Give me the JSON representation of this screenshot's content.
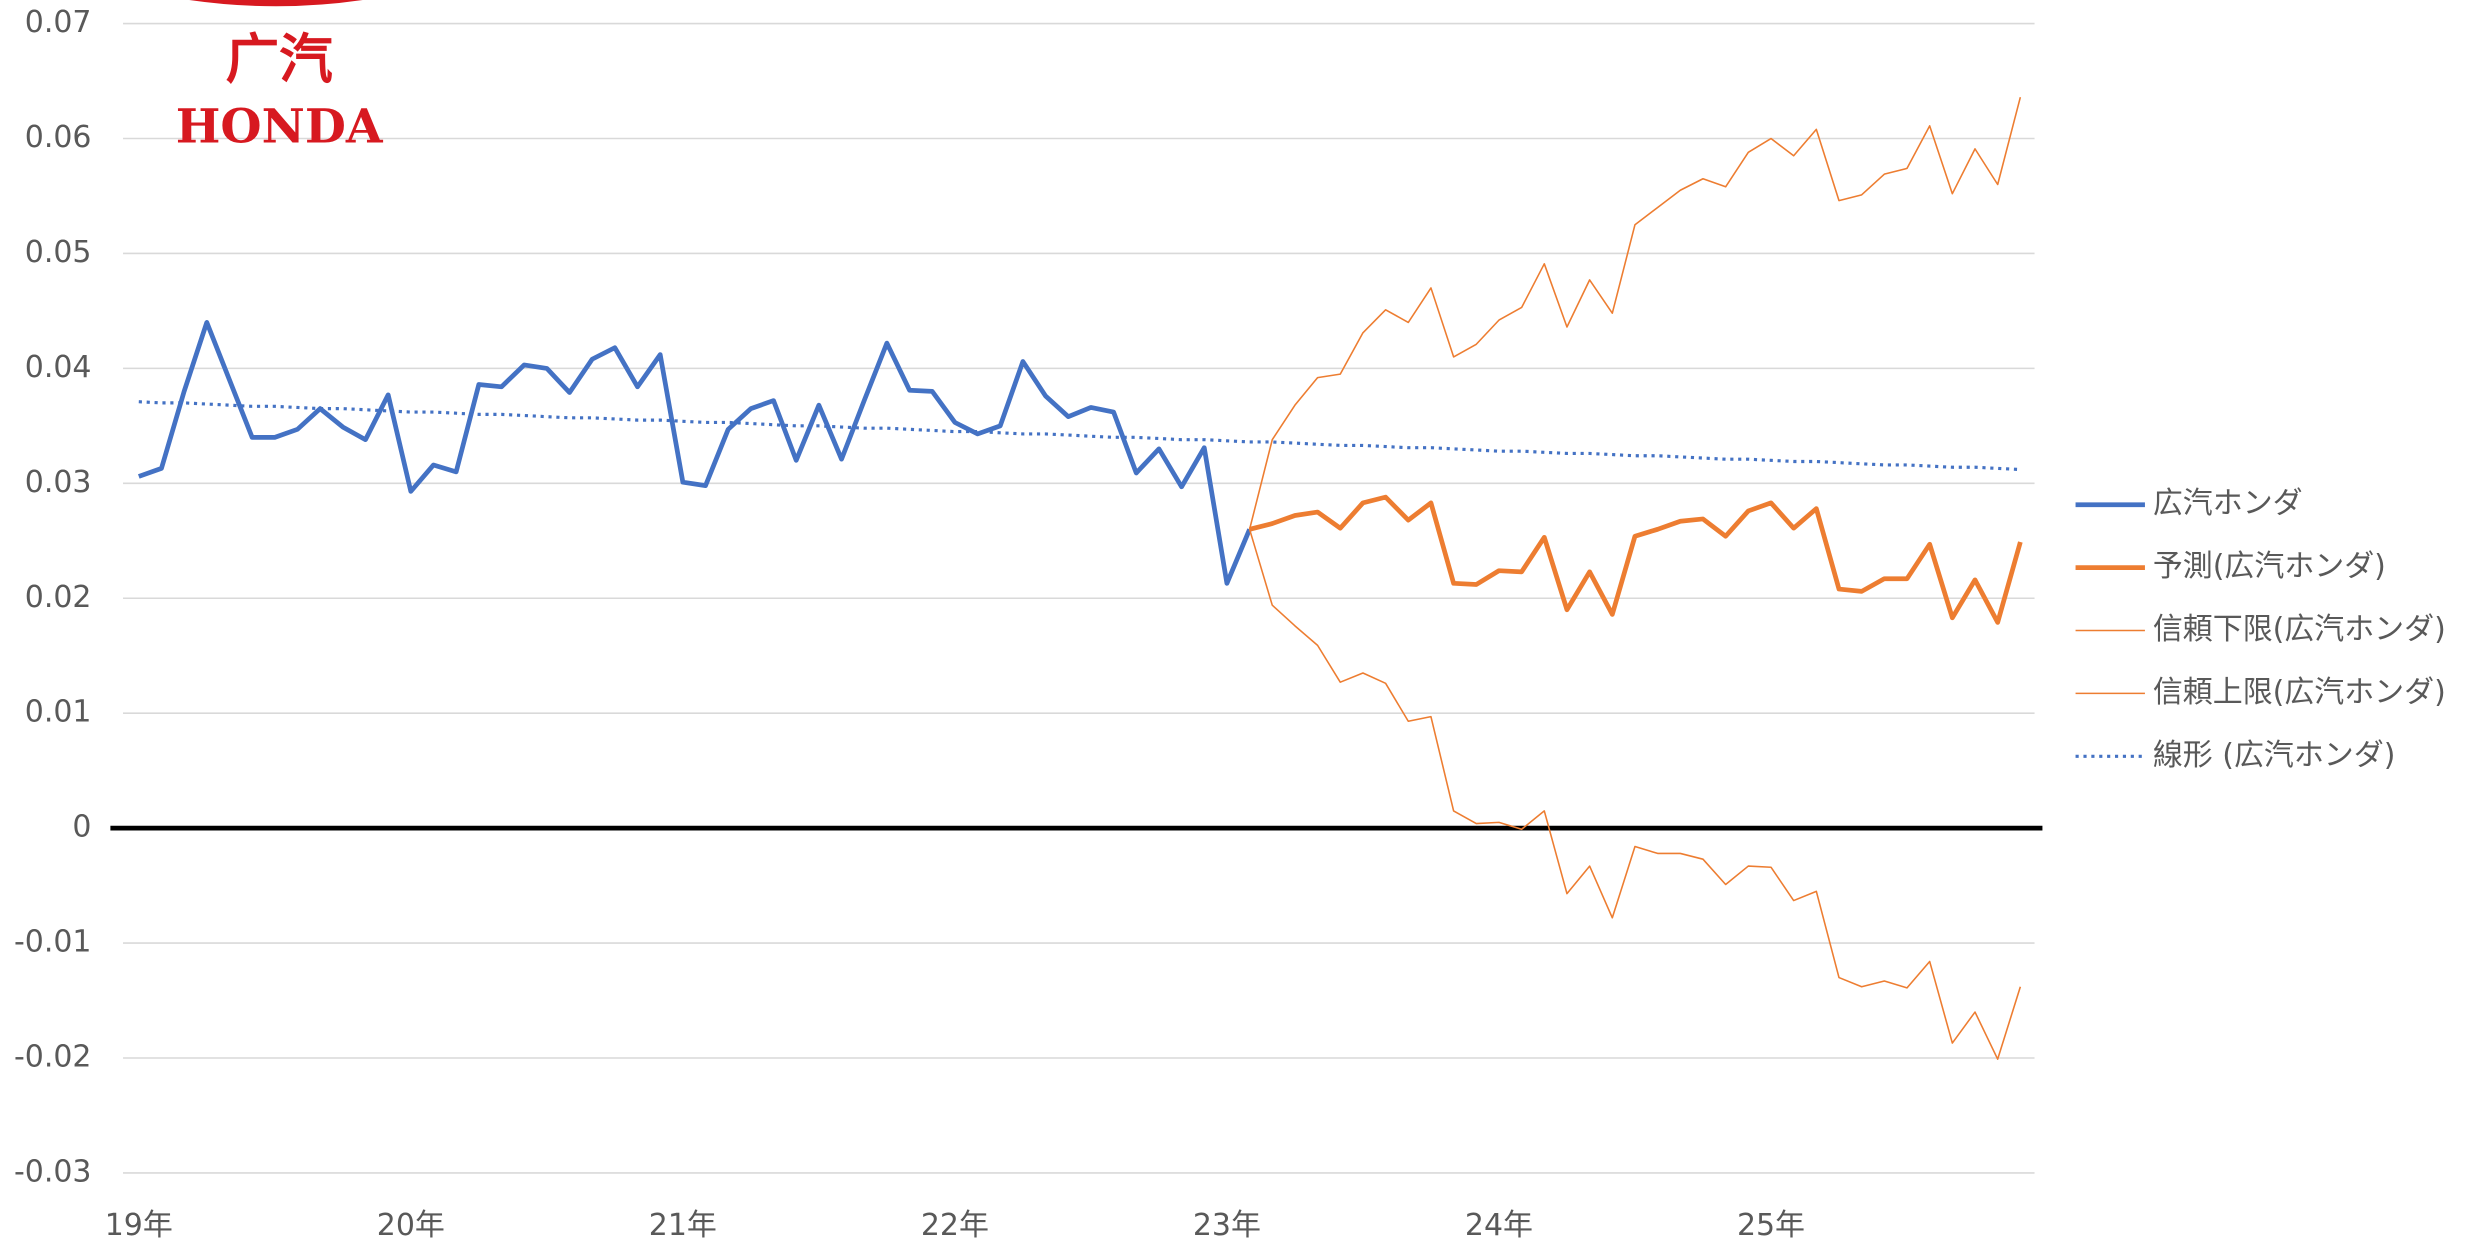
{
  "chart_data": {
    "type": "line",
    "logo": {
      "top": "广汽",
      "bottom": "HONDA"
    },
    "categories": [
      "19年",
      null,
      null,
      null,
      null,
      null,
      null,
      null,
      null,
      null,
      null,
      null,
      "20年",
      null,
      null,
      null,
      null,
      null,
      null,
      null,
      null,
      null,
      null,
      null,
      "21年",
      null,
      null,
      null,
      null,
      null,
      null,
      null,
      null,
      null,
      null,
      null,
      "22年",
      null,
      null,
      null,
      null,
      null,
      null,
      null,
      null,
      null,
      null,
      null,
      "23年",
      null,
      null,
      null,
      null,
      null,
      null,
      null,
      null,
      null,
      null,
      null,
      "24年",
      null,
      null,
      null,
      null,
      null,
      null,
      null,
      null,
      null,
      null,
      null,
      "25年",
      null,
      null,
      null,
      null,
      null,
      null,
      null,
      null,
      null,
      null,
      null
    ],
    "ylim": [
      -0.03,
      0.07
    ],
    "yticks": [
      -0.03,
      -0.02,
      -0.01,
      0,
      0.01,
      0.02,
      0.03,
      0.04,
      0.05,
      0.06,
      0.07
    ],
    "grid": true,
    "legend": "right",
    "series": [
      {
        "name": "広汽ホンダ",
        "color": "#4472c4",
        "line_width": 3,
        "values": [
          0.0306,
          0.0313,
          0.038,
          0.044,
          0.039,
          0.034,
          0.034,
          0.0347,
          0.0365,
          0.0349,
          0.0338,
          0.0377,
          0.0293,
          0.0316,
          0.031,
          0.0386,
          0.0384,
          0.0403,
          0.04,
          0.0379,
          0.0408,
          0.0418,
          0.0384,
          0.0412,
          0.0301,
          0.0298,
          0.0347,
          0.0365,
          0.0372,
          0.032,
          0.0368,
          0.0321,
          0.0372,
          0.0422,
          0.0381,
          0.038,
          0.0353,
          0.0343,
          0.035,
          0.0406,
          0.0376,
          0.0358,
          0.0366,
          0.0362,
          0.0309,
          0.033,
          0.0297,
          0.0331,
          0.0213,
          0.026,
          null,
          null,
          null,
          null,
          null,
          null,
          null,
          null,
          null,
          null,
          null,
          null,
          null,
          null,
          null,
          null,
          null,
          null,
          null,
          null,
          null,
          null,
          null,
          null,
          null,
          null,
          null,
          null,
          null,
          null,
          null,
          null,
          null,
          null
        ]
      },
      {
        "name": "予測(広汽ホンダ)",
        "color": "#ed7d31",
        "line_width": 3,
        "values": [
          null,
          null,
          null,
          null,
          null,
          null,
          null,
          null,
          null,
          null,
          null,
          null,
          null,
          null,
          null,
          null,
          null,
          null,
          null,
          null,
          null,
          null,
          null,
          null,
          null,
          null,
          null,
          null,
          null,
          null,
          null,
          null,
          null,
          null,
          null,
          null,
          null,
          null,
          null,
          null,
          null,
          null,
          null,
          null,
          null,
          null,
          null,
          null,
          null,
          0.026,
          0.0265,
          0.0272,
          0.0275,
          0.0261,
          0.0283,
          0.0288,
          0.0268,
          0.0283,
          0.0213,
          0.0212,
          0.0224,
          0.0223,
          0.0253,
          0.019,
          0.0223,
          0.0186,
          0.0254,
          0.026,
          0.0267,
          0.0269,
          0.0254,
          0.0276,
          0.0283,
          0.0261,
          0.0278,
          0.0208,
          0.0206,
          0.0217,
          0.0217,
          0.0247,
          0.0183,
          0.0216,
          0.0179,
          0.0249
        ]
      },
      {
        "name": "信頼下限(広汽ホンダ)",
        "color": "#ed7d31",
        "line_width": 1,
        "values": [
          null,
          null,
          null,
          null,
          null,
          null,
          null,
          null,
          null,
          null,
          null,
          null,
          null,
          null,
          null,
          null,
          null,
          null,
          null,
          null,
          null,
          null,
          null,
          null,
          null,
          null,
          null,
          null,
          null,
          null,
          null,
          null,
          null,
          null,
          null,
          null,
          null,
          null,
          null,
          null,
          null,
          null,
          null,
          null,
          null,
          null,
          null,
          null,
          null,
          0.026,
          0.0194,
          0.0176,
          0.0159,
          0.0127,
          0.0135,
          0.0126,
          0.0093,
          0.0097,
          0.0015,
          0.0004,
          0.0005,
          -0.0001,
          0.0015,
          -0.0057,
          -0.0033,
          -0.0078,
          -0.0016,
          -0.0022,
          -0.0022,
          -0.0027,
          -0.0049,
          -0.0033,
          -0.0034,
          -0.0063,
          -0.0055,
          -0.013,
          -0.0138,
          -0.0133,
          -0.0139,
          -0.0116,
          -0.0187,
          -0.016,
          -0.0201,
          -0.0138
        ]
      },
      {
        "name": "信頼上限(広汽ホンダ)",
        "color": "#ed7d31",
        "line_width": 1,
        "values": [
          null,
          null,
          null,
          null,
          null,
          null,
          null,
          null,
          null,
          null,
          null,
          null,
          null,
          null,
          null,
          null,
          null,
          null,
          null,
          null,
          null,
          null,
          null,
          null,
          null,
          null,
          null,
          null,
          null,
          null,
          null,
          null,
          null,
          null,
          null,
          null,
          null,
          null,
          null,
          null,
          null,
          null,
          null,
          null,
          null,
          null,
          null,
          null,
          null,
          0.026,
          0.0338,
          0.0368,
          0.0392,
          0.0395,
          0.0431,
          0.0451,
          0.044,
          0.047,
          0.041,
          0.0421,
          0.0442,
          0.0453,
          0.0491,
          0.0436,
          0.0477,
          0.0448,
          0.0525,
          0.054,
          0.0555,
          0.0565,
          0.0558,
          0.0588,
          0.06,
          0.0585,
          0.0608,
          0.0546,
          0.0551,
          0.0569,
          0.0574,
          0.0611,
          0.0552,
          0.0591,
          0.056,
          0.0636
        ]
      },
      {
        "name": "線形 (広汽ホンダ)",
        "color": "#4472c4",
        "line_width": 2,
        "dashed": true,
        "values": [
          0.0371,
          0.037,
          0.037,
          0.0369,
          0.0368,
          0.0367,
          0.0367,
          0.0366,
          0.0365,
          0.0365,
          0.0364,
          0.0363,
          0.0362,
          0.0362,
          0.0361,
          0.036,
          0.036,
          0.0359,
          0.0358,
          0.0357,
          0.0357,
          0.0356,
          0.0355,
          0.0355,
          0.0354,
          0.0353,
          0.0353,
          0.0352,
          0.0351,
          0.035,
          0.035,
          0.0349,
          0.0348,
          0.0348,
          0.0347,
          0.0346,
          0.0345,
          0.0345,
          0.0344,
          0.0343,
          0.0343,
          0.0342,
          0.0341,
          0.034,
          0.034,
          0.0339,
          0.0338,
          0.0338,
          0.0337,
          0.0336,
          0.0336,
          0.0335,
          0.0334,
          0.0333,
          0.0333,
          0.0332,
          0.0331,
          0.0331,
          0.033,
          0.0329,
          0.0328,
          0.0328,
          0.0327,
          0.0326,
          0.0326,
          0.0325,
          0.0324,
          0.0324,
          0.0323,
          0.0322,
          0.0321,
          0.0321,
          0.032,
          0.0319,
          0.0319,
          0.0318,
          0.0317,
          0.0316,
          0.0316,
          0.0315,
          0.0314,
          0.0314,
          0.0313,
          0.0312
        ]
      }
    ]
  }
}
